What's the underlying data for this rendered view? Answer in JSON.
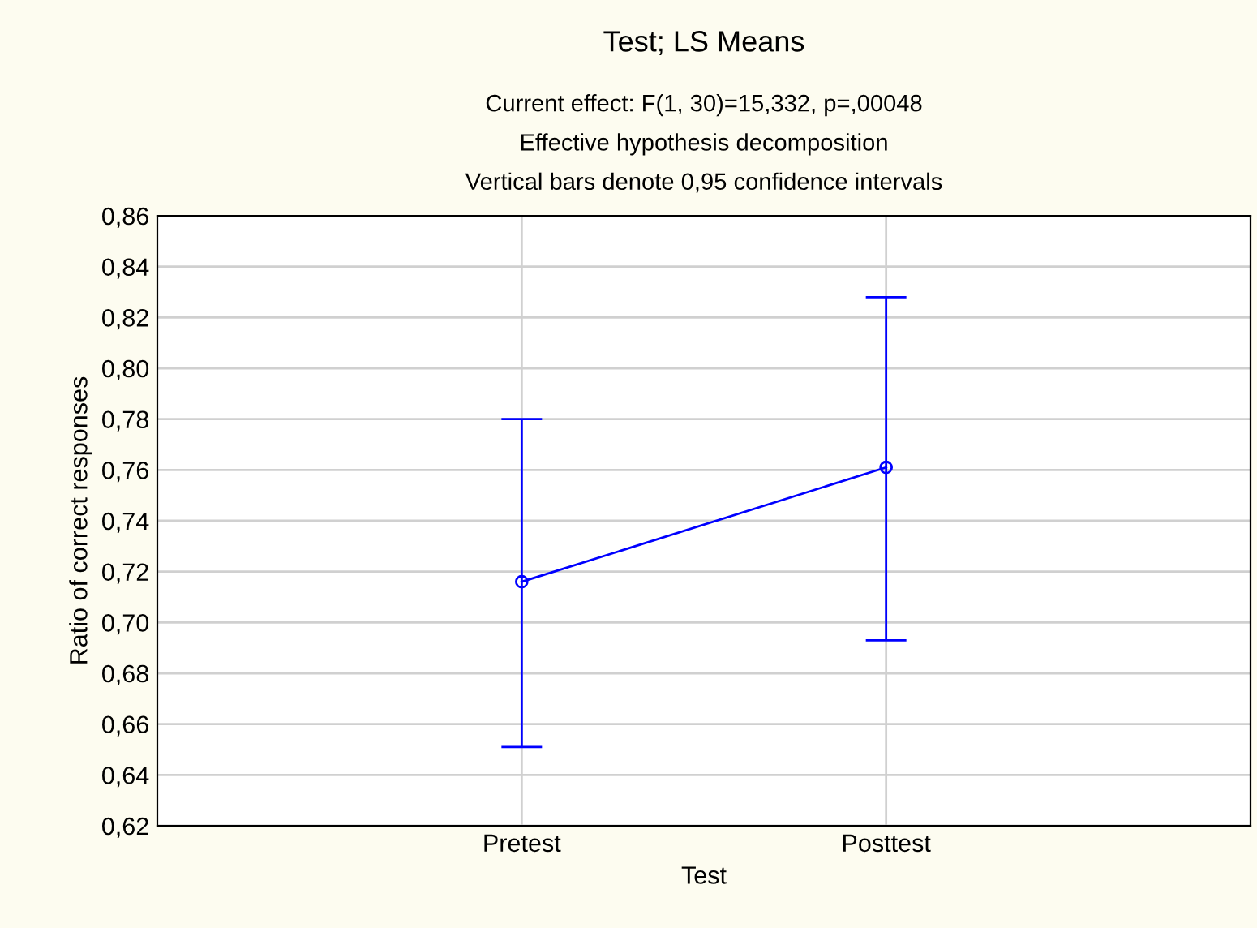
{
  "chart_data": {
    "type": "line",
    "title": "Test; LS Means",
    "subtitle": "Current effect: F(1, 30)=15,332, p=,00048\nEffective hypothesis decomposition\nVertical bars denote 0,95 confidence intervals",
    "xlabel": "Test",
    "ylabel": "Ratio of correct responses",
    "categories": [
      "Pretest",
      "Posttest"
    ],
    "series": [
      {
        "color": "#0000ff",
        "values": [
          0.716,
          0.761
        ],
        "errors": [
          [
            0.651,
            0.78
          ],
          [
            0.693,
            0.828
          ]
        ]
      }
    ],
    "ylim": [
      0.62,
      0.86
    ],
    "yticks": [
      {
        "value": 0.62,
        "label": "0,62"
      },
      {
        "value": 0.64,
        "label": "0,64"
      },
      {
        "value": 0.66,
        "label": "0,66"
      },
      {
        "value": 0.68,
        "label": "0,68"
      },
      {
        "value": 0.7,
        "label": "0,70"
      },
      {
        "value": 0.72,
        "label": "0,72"
      },
      {
        "value": 0.74,
        "label": "0,74"
      },
      {
        "value": 0.76,
        "label": "0,76"
      },
      {
        "value": 0.78,
        "label": "0,78"
      },
      {
        "value": 0.8,
        "label": "0,80"
      },
      {
        "value": 0.82,
        "label": "0,82"
      },
      {
        "value": 0.84,
        "label": "0,84"
      },
      {
        "value": 0.86,
        "label": "0,86"
      }
    ],
    "grid": true,
    "marker": "circle",
    "line_style": "solid"
  }
}
